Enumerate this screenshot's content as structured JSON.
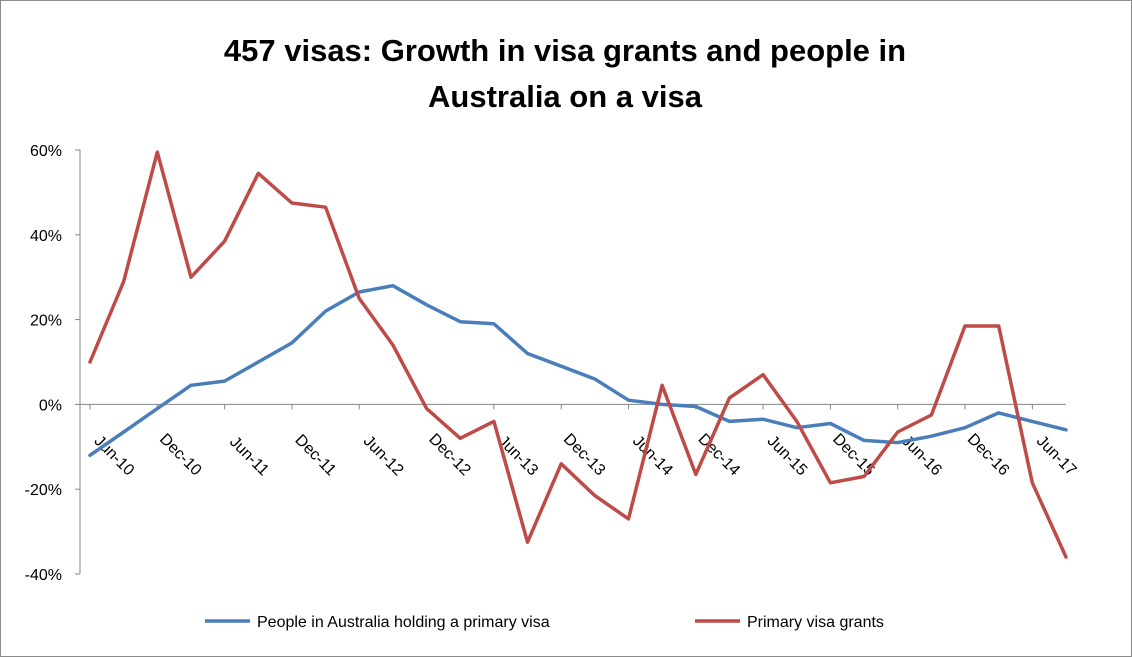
{
  "chart_data": {
    "type": "line",
    "title_lines": [
      "457 visas: Growth in visa grants and people in",
      "Australia on a visa"
    ],
    "xlabel": "",
    "ylabel": "",
    "ylim": [
      -0.4,
      0.6
    ],
    "yticks": [
      -0.4,
      -0.2,
      0,
      0.2,
      0.4,
      0.6
    ],
    "ytick_labels": [
      "-40%",
      "-20%",
      "0%",
      "20%",
      "40%",
      "60%"
    ],
    "x": [
      "Jun-10",
      "Sep-10",
      "Dec-10",
      "Mar-11",
      "Jun-11",
      "Sep-11",
      "Dec-11",
      "Mar-12",
      "Jun-12",
      "Sep-12",
      "Dec-12",
      "Mar-13",
      "Jun-13",
      "Sep-13",
      "Dec-13",
      "Mar-14",
      "Jun-14",
      "Sep-14",
      "Dec-14",
      "Mar-15",
      "Jun-15",
      "Sep-15",
      "Dec-15",
      "Mar-16",
      "Jun-16",
      "Sep-16",
      "Dec-16",
      "Mar-17",
      "Jun-17",
      "Sep-17"
    ],
    "xtick_labels": [
      "Jun-10",
      "Dec-10",
      "Jun-11",
      "Dec-11",
      "Jun-12",
      "Dec-12",
      "Jun-13",
      "Dec-13",
      "Jun-14",
      "Dec-14",
      "Jun-15",
      "Dec-15",
      "Jun-16",
      "Dec-16",
      "Jun-17"
    ],
    "grid": false,
    "legend_position": "bottom",
    "series": [
      {
        "name": "People in Australia holding a primary visa",
        "color": "#4a7ebb",
        "values": [
          -0.12,
          -0.065,
          -0.01,
          0.045,
          0.055,
          0.1,
          0.145,
          0.22,
          0.265,
          0.28,
          0.235,
          0.195,
          0.19,
          0.12,
          0.09,
          0.06,
          0.01,
          0.0,
          -0.005,
          -0.04,
          -0.035,
          -0.055,
          -0.045,
          -0.085,
          -0.09,
          -0.075,
          -0.055,
          -0.02,
          -0.04,
          -0.06
        ]
      },
      {
        "name": "Primary visa grants",
        "color": "#be4b48",
        "values": [
          0.1,
          0.29,
          0.595,
          0.3,
          0.385,
          0.545,
          0.475,
          0.465,
          0.25,
          0.14,
          -0.01,
          -0.08,
          -0.04,
          -0.325,
          -0.14,
          -0.215,
          -0.27,
          0.045,
          -0.165,
          0.015,
          0.07,
          -0.04,
          -0.185,
          -0.17,
          -0.065,
          -0.025,
          0.185,
          0.185,
          -0.185,
          -0.36
        ]
      }
    ]
  }
}
